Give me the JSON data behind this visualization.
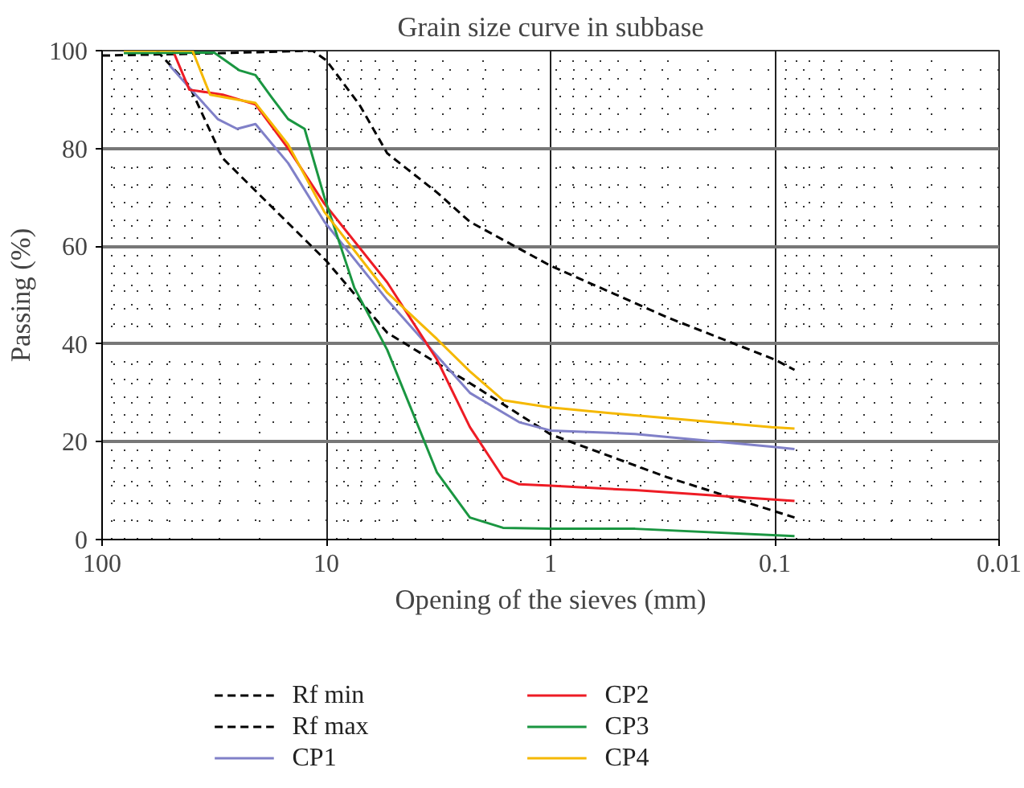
{
  "chart_data": {
    "type": "line",
    "title": "Grain size curve in subbase",
    "xlabel": "Opening of the sieves (mm)",
    "ylabel": "Passing (%)",
    "log": "x",
    "xlim": [
      100,
      0.01
    ],
    "xticks": [
      100,
      10,
      1,
      0.1,
      0.01
    ],
    "ylim": [
      0,
      100
    ],
    "yticks": [
      0,
      20,
      40,
      60,
      80,
      100
    ],
    "grid": true,
    "legend": "bottom",
    "marker": "none",
    "series": [
      {
        "name": "Rf min",
        "color": "#000000",
        "line_style": "dashed",
        "x": [
          100,
          29,
          11.5,
          10,
          7.13,
          5.35,
          3.21,
          2.29,
          1,
          0.3,
          0.1,
          0.0817
        ],
        "values": [
          99,
          99.5,
          100,
          98,
          89,
          79,
          71,
          65,
          56,
          45.4,
          36.8,
          34.7
        ]
      },
      {
        "name": "Rf max",
        "color": "#000000",
        "line_style": "dashed",
        "x": [
          57,
          40.8,
          29,
          10,
          5.35,
          2.29,
          1,
          0.3,
          0.0817
        ],
        "values": [
          100,
          92.8,
          78,
          57,
          42.3,
          32,
          21.5,
          12.7,
          4.5
        ]
      },
      {
        "name": "CP1",
        "color": "#8080c8",
        "line_style": "solid",
        "x": [
          50,
          40,
          30.5,
          25,
          20.7,
          14.8,
          10.2,
          5.35,
          2.29,
          1.38,
          1,
          0.42,
          0.1035,
          0.0817
        ],
        "values": [
          97,
          92,
          86,
          84,
          85,
          77,
          65,
          49,
          30,
          24,
          22.3,
          21.6,
          19,
          18.5
        ]
      },
      {
        "name": "CP2",
        "color": "#ee1c25",
        "line_style": "solid",
        "x": [
          48.3,
          40.8,
          29,
          20.7,
          14.8,
          10.2,
          5.35,
          3.21,
          2.29,
          1.63,
          1.38,
          1,
          0.42,
          0.0817
        ],
        "values": [
          100,
          92,
          91,
          89,
          80,
          68.7,
          52.6,
          36.8,
          23,
          12.7,
          11.3,
          11,
          10.1,
          7.9
        ]
      },
      {
        "name": "CP3",
        "color": "#1a9641",
        "line_style": "solid",
        "x": [
          80,
          31.6,
          24.5,
          20.7,
          17.5,
          14.8,
          12.5,
          10.2,
          7.5,
          5.35,
          3.21,
          2.29,
          1.63,
          1,
          0.42,
          0.0817
        ],
        "values": [
          99.5,
          99.6,
          96,
          95,
          90.4,
          86,
          84,
          70,
          51.5,
          38.8,
          13.7,
          4.5,
          2.4,
          2.2,
          2.2,
          0.7
        ]
      },
      {
        "name": "CP4",
        "color": "#f5b800",
        "line_style": "solid",
        "x": [
          80,
          39.5,
          33,
          20.7,
          14.8,
          10.2,
          5.35,
          3.21,
          2.29,
          1.63,
          1,
          0.42,
          0.1035,
          0.0817
        ],
        "values": [
          100,
          100,
          91,
          89.3,
          80.8,
          67,
          50.5,
          41,
          34.4,
          28.5,
          27,
          25.4,
          23,
          22.7
        ]
      }
    ]
  }
}
